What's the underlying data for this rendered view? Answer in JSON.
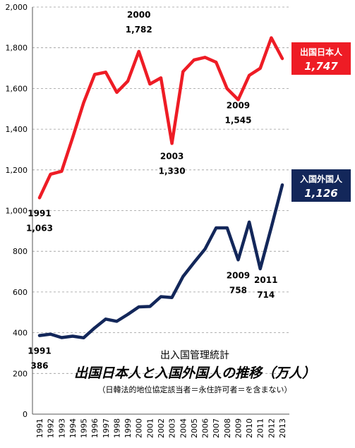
{
  "chart_data": {
    "type": "line",
    "caption": {
      "line1": "出入国管理統計",
      "line2": "出国日本人と入国外国人の推移（万人）",
      "line3": "（日韓法的地位協定該当者＝永住許可者＝を含まない）"
    },
    "categories": [
      "1991",
      "1992",
      "1993",
      "1994",
      "1995",
      "1996",
      "1997",
      "1998",
      "1999",
      "2000",
      "2001",
      "2002",
      "2003",
      "2004",
      "2005",
      "2006",
      "2007",
      "2008",
      "2009",
      "2010",
      "2011",
      "2012",
      "2013"
    ],
    "ylim": [
      0,
      2000
    ],
    "yticks": [
      "0",
      "200",
      "400",
      "600",
      "800",
      "1,000",
      "1,200",
      "1,400",
      "1,600",
      "1,800",
      "2,000"
    ],
    "grid": "horizontal dashed",
    "series": [
      {
        "name": "出国日本人",
        "color": "#ee1c25",
        "values": [
          1063,
          1179,
          1193,
          1358,
          1530,
          1669,
          1680,
          1581,
          1636,
          1782,
          1622,
          1652,
          1330,
          1683,
          1740,
          1753,
          1729,
          1599,
          1545,
          1664,
          1699,
          1849,
          1747
        ],
        "badge_value": "1,747"
      },
      {
        "name": "入国外国人",
        "color": "#13275a",
        "values": [
          386,
          393,
          376,
          383,
          375,
          424,
          467,
          456,
          490,
          527,
          529,
          577,
          573,
          676,
          745,
          811,
          915,
          915,
          758,
          944,
          714,
          917,
          1126
        ],
        "badge_value": "1,126"
      }
    ],
    "annotations": [
      {
        "series": 0,
        "index": 0,
        "year": "1991",
        "value": "1,063"
      },
      {
        "series": 0,
        "index": 9,
        "year": "2000",
        "value": "1,782"
      },
      {
        "series": 0,
        "index": 12,
        "year": "2003",
        "value": "1,330"
      },
      {
        "series": 0,
        "index": 18,
        "year": "2009",
        "value": "1,545"
      },
      {
        "series": 1,
        "index": 0,
        "year": "1991",
        "value": "386"
      },
      {
        "series": 1,
        "index": 18,
        "year": "2009",
        "value": "758"
      },
      {
        "series": 1,
        "index": 20,
        "year": "2011",
        "value": "714"
      }
    ]
  }
}
